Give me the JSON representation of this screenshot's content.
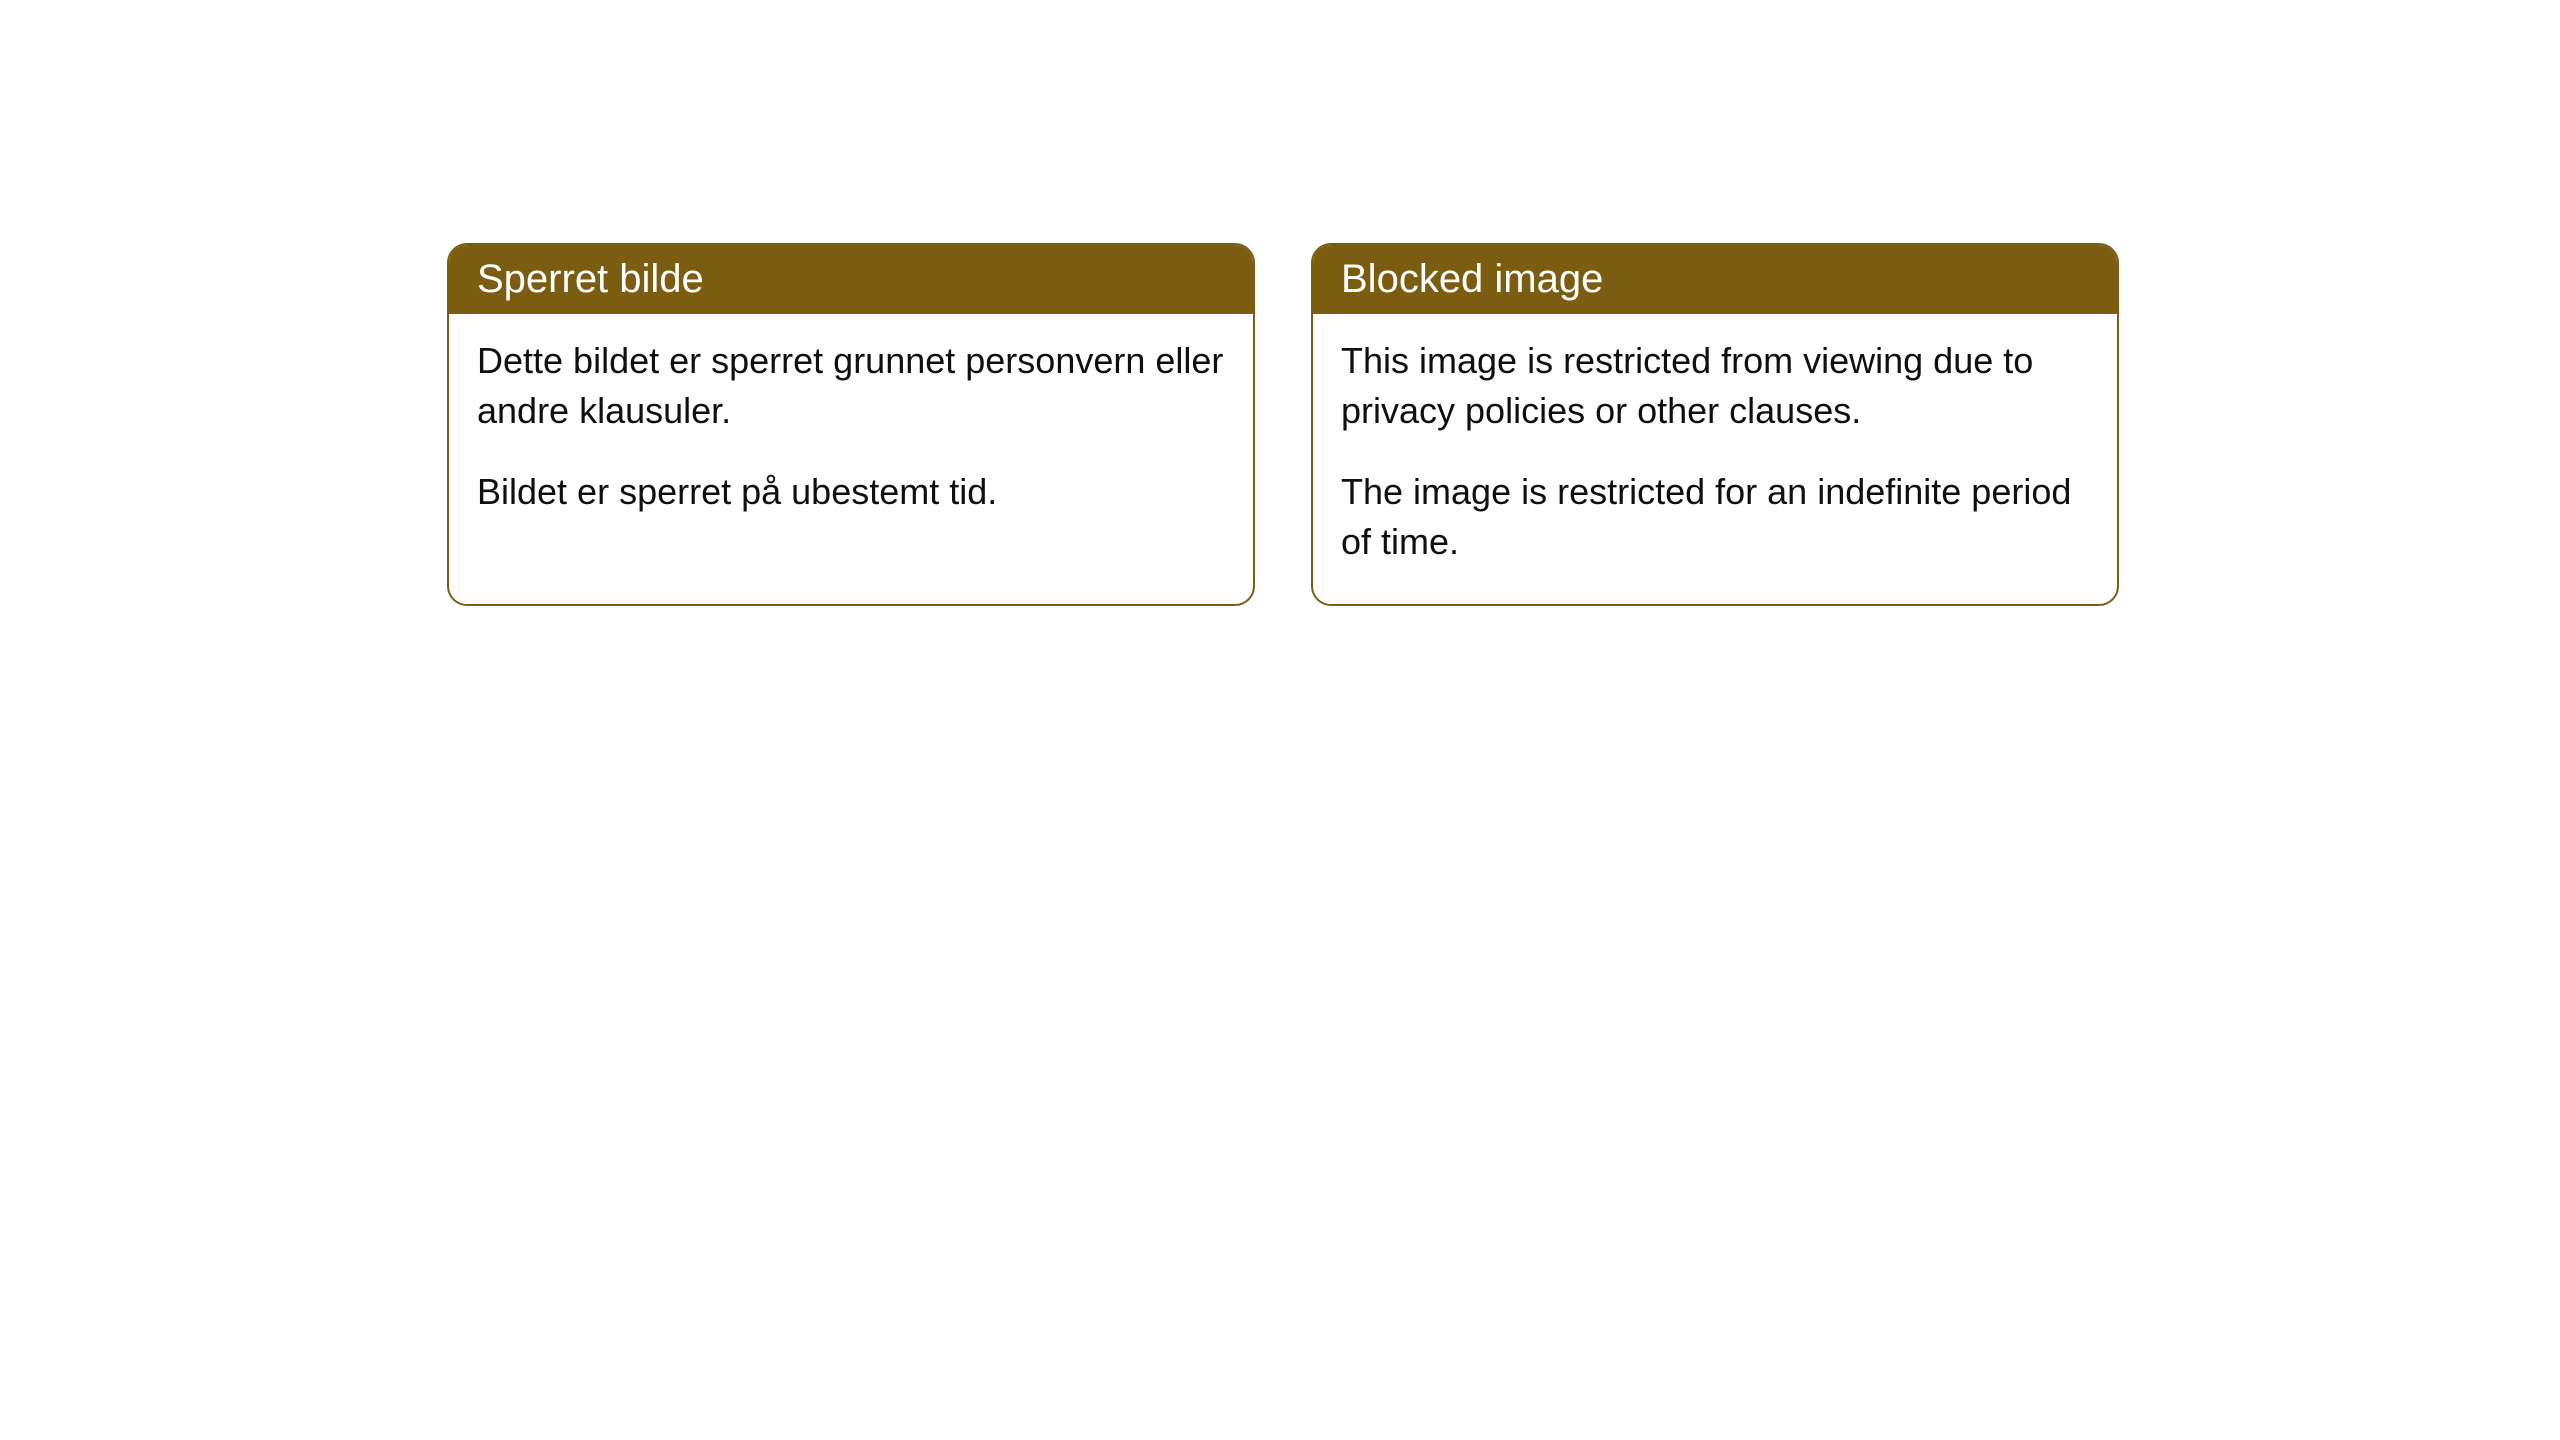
{
  "cards": [
    {
      "title": "Sperret bilde",
      "paragraph1": "Dette bildet er sperret grunnet personvern eller andre klausuler.",
      "paragraph2": "Bildet er sperret på ubestemt tid."
    },
    {
      "title": "Blocked image",
      "paragraph1": "This image is restricted from viewing due to privacy policies or other clauses.",
      "paragraph2": "The image is restricted for an indefinite period of time."
    }
  ],
  "style": {
    "header_bg_color": "#7a5d11",
    "header_text_color": "#ffffff",
    "border_color": "#7a5d11",
    "body_text_color": "#0f0f0f",
    "background_color": "#ffffff",
    "border_radius": 20,
    "title_fontsize": 40,
    "body_fontsize": 36
  }
}
